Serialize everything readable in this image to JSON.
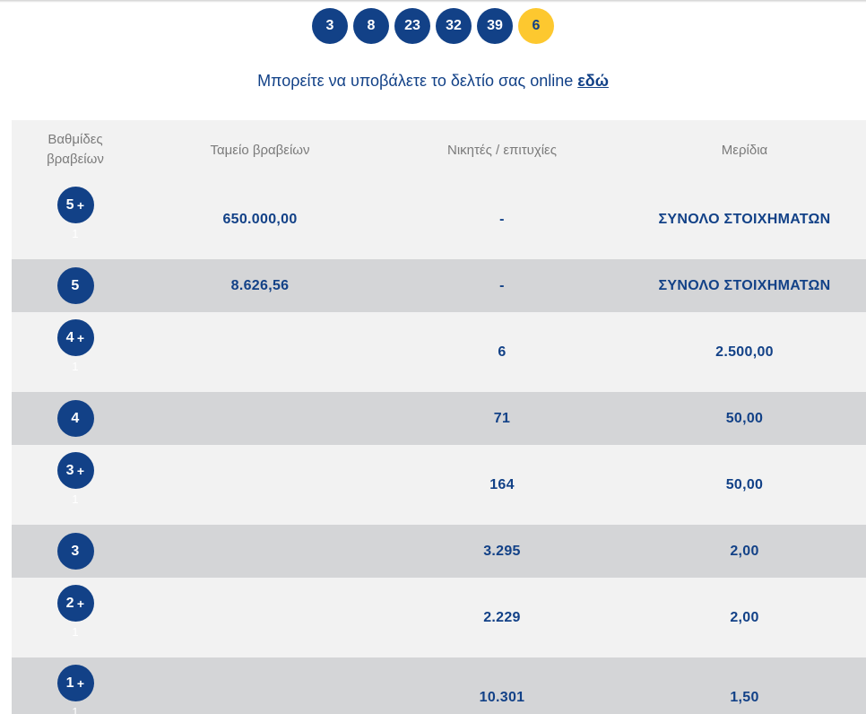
{
  "draw": {
    "numbers": [
      "3",
      "8",
      "23",
      "32",
      "39"
    ],
    "bonus": "6"
  },
  "submit": {
    "text": "Μπορείτε να υποβάλετε το δελτίο σας online",
    "link_label": "εδώ"
  },
  "table": {
    "headers": {
      "tier": "Βαθμίδες βραβείων",
      "fund": "Ταμείο βραβείων",
      "winners": "Νικητές / επιτυχίες",
      "share": "Μερίδια"
    },
    "rows": [
      {
        "tier": "5",
        "plus": "+",
        "sub": "1",
        "fund": "650.000,00",
        "winners": "-",
        "share": "ΣΥΝΟΛΟ ΣΤΟΙΧΗΜΑΤΩΝ"
      },
      {
        "tier": "5",
        "plus": "",
        "sub": "",
        "fund": "8.626,56",
        "winners": "-",
        "share": "ΣΥΝΟΛΟ ΣΤΟΙΧΗΜΑΤΩΝ"
      },
      {
        "tier": "4",
        "plus": "+",
        "sub": "1",
        "fund": "",
        "winners": "6",
        "share": "2.500,00"
      },
      {
        "tier": "4",
        "plus": "",
        "sub": "",
        "fund": "",
        "winners": "71",
        "share": "50,00"
      },
      {
        "tier": "3",
        "plus": "+",
        "sub": "1",
        "fund": "",
        "winners": "164",
        "share": "50,00"
      },
      {
        "tier": "3",
        "plus": "",
        "sub": "",
        "fund": "",
        "winners": "3.295",
        "share": "2,00"
      },
      {
        "tier": "2",
        "plus": "+",
        "sub": "1",
        "fund": "",
        "winners": "2.229",
        "share": "2,00"
      },
      {
        "tier": "1",
        "plus": "+",
        "sub": "1",
        "fund": "",
        "winners": "10.301",
        "share": "1,50"
      }
    ]
  },
  "colors": {
    "brand_blue": "#124187",
    "bonus_yellow": "#fdc82f",
    "row_light": "#f2f2f2",
    "row_dark": "#d4d5d7",
    "header_text": "#7b7b7b"
  }
}
